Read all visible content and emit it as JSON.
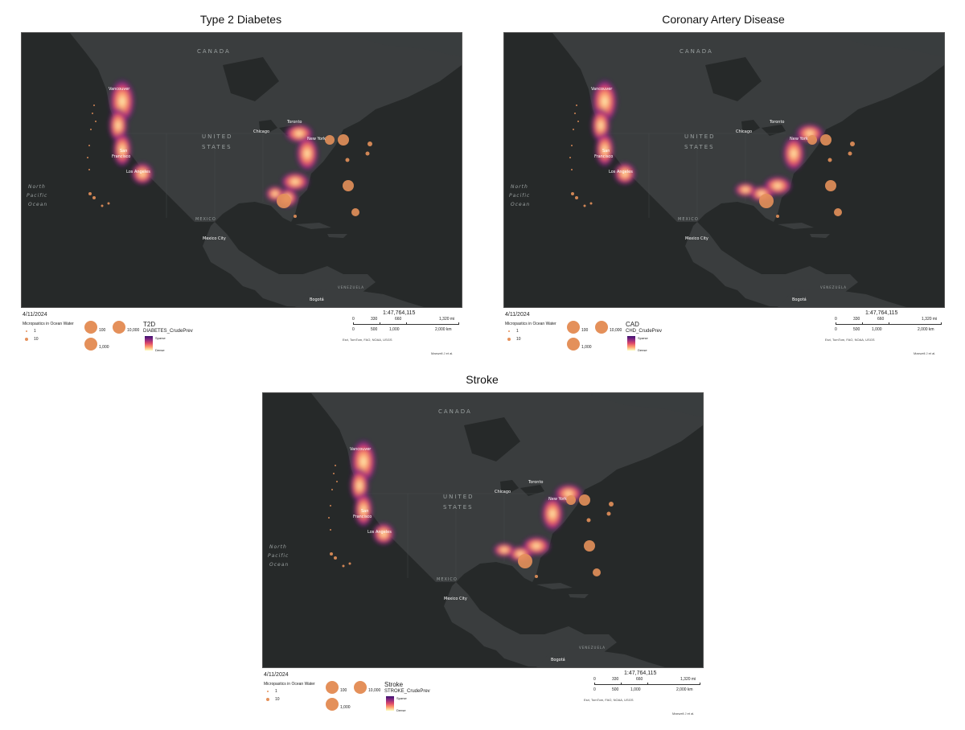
{
  "panels": [
    {
      "title": "Type 2 Diabetes",
      "date": "4/11/2024",
      "symbol_heading": "Micropastics in Ocean Water",
      "symbol_labels": [
        "1",
        "10",
        "100",
        "1,000",
        "10,000"
      ],
      "disease_label": "T2D",
      "field_label": "DIABETES_CrudePrev",
      "ramp_top": "Sparse",
      "ramp_bottom": "Dense",
      "scale": "1:47,764,115",
      "mi_labels": [
        "0",
        "330",
        "660",
        "1,320 mi"
      ],
      "km_labels": [
        "0",
        "500",
        "1,000",
        "2,000 km"
      ],
      "attribution": "Esri, TomTom, FAO, NOAA, USGS",
      "credit": "Maxwell J et al."
    },
    {
      "title": "Coronary Artery Disease",
      "date": "4/11/2024",
      "symbol_heading": "Micropastics in Ocean Water",
      "symbol_labels": [
        "1",
        "10",
        "100",
        "1,000",
        "10,000"
      ],
      "disease_label": "CAD",
      "field_label": "CHD_CrudePrev",
      "ramp_top": "Sparse",
      "ramp_bottom": "Dense",
      "scale": "1:47,764,115",
      "mi_labels": [
        "0",
        "330",
        "660",
        "1,320 mi"
      ],
      "km_labels": [
        "0",
        "500",
        "1,000",
        "2,000 km"
      ],
      "attribution": "Esri, TomTom, FAO, NOAA, USGS",
      "credit": "Maxwell J et al."
    },
    {
      "title": "Stroke",
      "date": "4/11/2024",
      "symbol_heading": "Micropastics in Ocean Water",
      "symbol_labels": [
        "1",
        "10",
        "100",
        "1,000",
        "10,000"
      ],
      "disease_label": "Stroke",
      "field_label": "STROKE_CrudePrev",
      "ramp_top": "Sparse",
      "ramp_bottom": "Dense",
      "scale": "1:47,764,115",
      "mi_labels": [
        "0",
        "330",
        "660",
        "1,320 mi"
      ],
      "km_labels": [
        "0",
        "500",
        "1,000",
        "2,000 km"
      ],
      "attribution": "Esri, TomTom, FAO, NOAA, USGS",
      "credit": "Maxwell J et al."
    }
  ],
  "map_labels": {
    "canada": "CANADA",
    "united": "UNITED",
    "states": "STATES",
    "mexico": "MEXICO",
    "north": "North",
    "pacific": "Pacific",
    "ocean": "Ocean",
    "venezuela": "VENEZUELA",
    "vancouver": "Vancouver",
    "san": "San",
    "francisco": "Francisco",
    "los_angeles": "Los Angeles",
    "chicago": "Chicago",
    "toronto": "Toronto",
    "new_york": "New York",
    "mexico_city": "Mexico City",
    "bogota": "Bogotá"
  },
  "colors": {
    "map_bg": "#262929",
    "land": "#3a3d3e",
    "marker": "#e4905a",
    "heat_dense": "#fcfdbf",
    "heat_sparse": "#3b0f70"
  }
}
